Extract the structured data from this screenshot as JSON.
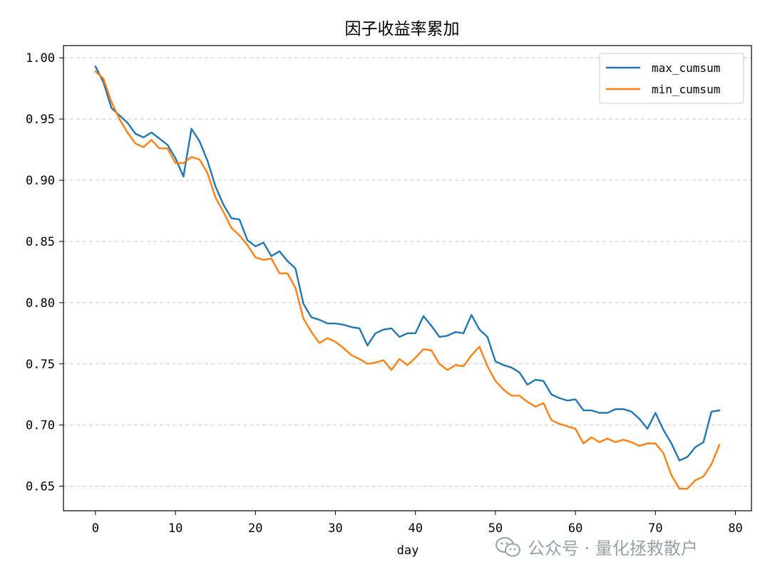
{
  "chart_data": {
    "type": "line",
    "title": "因子收益率累加",
    "xlabel": "day",
    "ylabel": "",
    "xlim": [
      -4,
      82
    ],
    "ylim": [
      0.63,
      1.01
    ],
    "xticks": [
      0,
      10,
      20,
      30,
      40,
      50,
      60,
      70,
      80
    ],
    "yticks": [
      0.65,
      0.7,
      0.75,
      0.8,
      0.85,
      0.9,
      0.95,
      1.0
    ],
    "ytick_labels": [
      "0.65",
      "0.70",
      "0.75",
      "0.80",
      "0.85",
      "0.90",
      "0.95",
      "1.00"
    ],
    "grid": "y-dashed",
    "legend_position": "top-right",
    "series": [
      {
        "name": "max_cumsum",
        "color": "#1f77b4",
        "values": [
          0.993,
          0.98,
          0.959,
          0.953,
          0.947,
          0.938,
          0.935,
          0.939,
          0.934,
          0.929,
          0.918,
          0.903,
          0.942,
          0.932,
          0.916,
          0.895,
          0.88,
          0.869,
          0.868,
          0.851,
          0.846,
          0.849,
          0.838,
          0.842,
          0.834,
          0.828,
          0.799,
          0.788,
          0.786,
          0.783,
          0.783,
          0.782,
          0.78,
          0.779,
          0.765,
          0.775,
          0.778,
          0.779,
          0.772,
          0.775,
          0.775,
          0.789,
          0.781,
          0.772,
          0.773,
          0.776,
          0.775,
          0.79,
          0.778,
          0.772,
          0.752,
          0.749,
          0.747,
          0.743,
          0.733,
          0.737,
          0.736,
          0.725,
          0.722,
          0.72,
          0.721,
          0.712,
          0.712,
          0.71,
          0.71,
          0.713,
          0.713,
          0.711,
          0.705,
          0.697,
          0.71,
          0.696,
          0.685,
          0.671,
          0.674,
          0.682,
          0.686,
          0.711,
          0.712
        ]
      },
      {
        "name": "min_cumsum",
        "color": "#ff7f0e",
        "values": [
          0.989,
          0.983,
          0.964,
          0.95,
          0.939,
          0.93,
          0.927,
          0.933,
          0.926,
          0.926,
          0.914,
          0.914,
          0.919,
          0.917,
          0.906,
          0.886,
          0.874,
          0.861,
          0.855,
          0.847,
          0.837,
          0.835,
          0.836,
          0.824,
          0.824,
          0.812,
          0.787,
          0.776,
          0.767,
          0.771,
          0.768,
          0.763,
          0.757,
          0.754,
          0.75,
          0.751,
          0.753,
          0.745,
          0.754,
          0.749,
          0.755,
          0.762,
          0.761,
          0.75,
          0.745,
          0.749,
          0.748,
          0.757,
          0.764,
          0.748,
          0.736,
          0.729,
          0.724,
          0.724,
          0.719,
          0.715,
          0.718,
          0.704,
          0.701,
          0.699,
          0.697,
          0.685,
          0.69,
          0.686,
          0.689,
          0.686,
          0.688,
          0.686,
          0.683,
          0.685,
          0.685,
          0.677,
          0.659,
          0.648,
          0.648,
          0.655,
          0.658,
          0.668,
          0.684
        ]
      }
    ]
  },
  "watermark": {
    "icon": "wechat-icon",
    "text": "公众号 · 量化拯救散户",
    "color": "#9aa0a6"
  }
}
